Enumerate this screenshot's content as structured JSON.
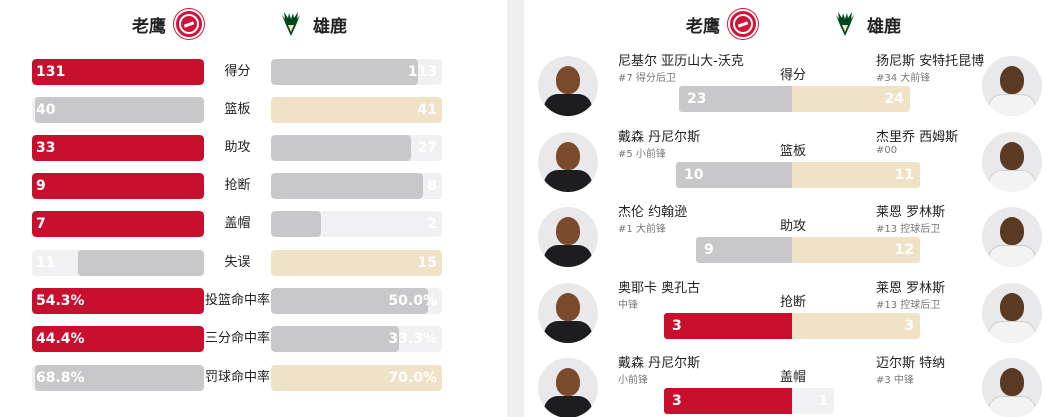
{
  "teams": {
    "away": {
      "name": "老鹰",
      "logo": "hawks-logo-icon",
      "color": "#c8102e"
    },
    "home": {
      "name": "雄鹿",
      "logo": "bucks-logo-icon",
      "color": "#efe2c6"
    }
  },
  "team_stats": [
    {
      "label": "得分",
      "away": "131",
      "home": "113",
      "away_frac": 1.0,
      "home_frac": 0.86,
      "leader": "away"
    },
    {
      "label": "篮板",
      "away": "40",
      "home": "41",
      "away_frac": 0.98,
      "home_frac": 1.0,
      "leader": "home"
    },
    {
      "label": "助攻",
      "away": "33",
      "home": "27",
      "away_frac": 1.0,
      "home_frac": 0.82,
      "leader": "away"
    },
    {
      "label": "抢断",
      "away": "9",
      "home": "8",
      "away_frac": 1.0,
      "home_frac": 0.89,
      "leader": "away"
    },
    {
      "label": "盖帽",
      "away": "7",
      "home": "2",
      "away_frac": 1.0,
      "home_frac": 0.29,
      "leader": "away"
    },
    {
      "label": "失误",
      "away": "11",
      "home": "15",
      "away_frac": 0.73,
      "home_frac": 1.0,
      "leader": "home"
    },
    {
      "label": "投篮命中率",
      "away": "54.3%",
      "home": "50.0%",
      "away_frac": 1.0,
      "home_frac": 0.92,
      "leader": "away"
    },
    {
      "label": "三分命中率",
      "away": "44.4%",
      "home": "33.3%",
      "away_frac": 1.0,
      "home_frac": 0.75,
      "leader": "away"
    },
    {
      "label": "罚球命中率",
      "away": "68.8%",
      "home": "70.0%",
      "away_frac": 0.98,
      "home_frac": 1.0,
      "leader": "home"
    }
  ],
  "leaders": [
    {
      "stat": "得分",
      "away_player": {
        "name": "尼基尔 亚历山大-沃克",
        "info": "#7 得分后卫",
        "value": "23",
        "frac": 0.88
      },
      "home_player": {
        "name": "扬尼斯 安特托昆博",
        "info": "#34 大前锋",
        "value": "24",
        "frac": 0.92
      },
      "leader": "home"
    },
    {
      "stat": "篮板",
      "away_player": {
        "name": "戴森 丹尼尔斯",
        "info": "#5 小前锋",
        "value": "10",
        "frac": 0.91
      },
      "home_player": {
        "name": "杰里乔 西姆斯",
        "info": "#00",
        "value": "11",
        "frac": 1.0
      },
      "leader": "home"
    },
    {
      "stat": "助攻",
      "away_player": {
        "name": "杰伦 约翰逊",
        "info": "#1 大前锋",
        "value": "9",
        "frac": 0.75
      },
      "home_player": {
        "name": "莱恩 罗林斯",
        "info": "#13 控球后卫",
        "value": "12",
        "frac": 1.0
      },
      "leader": "home"
    },
    {
      "stat": "抢断",
      "away_player": {
        "name": "奥耶卡 奥孔古",
        "info": "中锋",
        "value": "3",
        "frac": 1.0
      },
      "home_player": {
        "name": "莱恩 罗林斯",
        "info": "#13 控球后卫",
        "value": "3",
        "frac": 1.0
      },
      "leader": "tie"
    },
    {
      "stat": "盖帽",
      "away_player": {
        "name": "戴森 丹尼尔斯",
        "info": "小前锋",
        "value": "3",
        "frac": 1.0
      },
      "home_player": {
        "name": "迈尔斯 特纳",
        "info": "#3 中锋",
        "value": "1",
        "frac": 0.33
      },
      "leader": "away"
    }
  ]
}
